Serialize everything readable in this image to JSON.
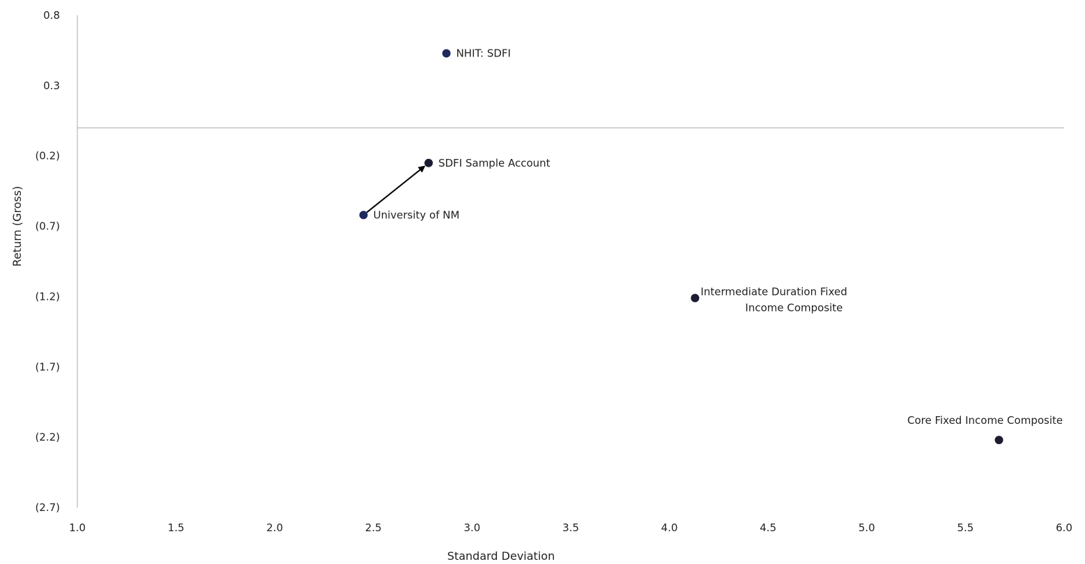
{
  "chart_data": {
    "type": "scatter",
    "title": "",
    "xlabel": "Standard Deviation",
    "ylabel": "Return (Gross)",
    "xlim": [
      1.0,
      6.0
    ],
    "ylim": [
      -2.7,
      0.8
    ],
    "x_ticks": [
      {
        "value": 1.0,
        "label": "1.0"
      },
      {
        "value": 1.5,
        "label": "1.5"
      },
      {
        "value": 2.0,
        "label": "2.0"
      },
      {
        "value": 2.5,
        "label": "2.5"
      },
      {
        "value": 3.0,
        "label": "3.0"
      },
      {
        "value": 3.5,
        "label": "3.5"
      },
      {
        "value": 4.0,
        "label": "4.0"
      },
      {
        "value": 4.5,
        "label": "4.5"
      },
      {
        "value": 5.0,
        "label": "5.0"
      },
      {
        "value": 5.5,
        "label": "5.5"
      },
      {
        "value": 6.0,
        "label": "6.0"
      }
    ],
    "y_ticks": [
      {
        "value": 0.8,
        "label": "0.8"
      },
      {
        "value": 0.3,
        "label": "0.3"
      },
      {
        "value": -0.2,
        "label": "(0.2)"
      },
      {
        "value": -0.7,
        "label": "(0.7)"
      },
      {
        "value": -1.2,
        "label": "(1.2)"
      },
      {
        "value": -1.7,
        "label": "(1.7)"
      },
      {
        "value": -2.2,
        "label": "(2.2)"
      },
      {
        "value": -2.7,
        "label": "(2.7)"
      }
    ],
    "zero_line": 0,
    "grid": false,
    "colors": {
      "point_primary": "#1f2a5c",
      "point_dark": "#1c1c33",
      "axis": "#aaaaaa",
      "arrow": "#000000"
    },
    "points": [
      {
        "name": "NHIT: SDFI",
        "label_lines": [
          "NHIT: SDFI"
        ],
        "x": 2.87,
        "y": 0.53,
        "label_pos": "right",
        "color": "#1f2a5c"
      },
      {
        "name": "SDFI Sample Account",
        "label_lines": [
          "SDFI Sample Account"
        ],
        "x": 2.78,
        "y": -0.25,
        "label_pos": "right",
        "color": "#1c1c33"
      },
      {
        "name": "University of NM",
        "label_lines": [
          "University of NM"
        ],
        "x": 2.45,
        "y": -0.62,
        "label_pos": "right",
        "color": "#1f2a5c"
      },
      {
        "name": "Intermediate Duration Fixed Income Composite",
        "label_lines": [
          "Intermediate Duration Fixed",
          "Income Composite"
        ],
        "x": 4.13,
        "y": -1.21,
        "label_pos": "right-top",
        "color": "#1c1c33"
      },
      {
        "name": "Core Fixed Income Composite",
        "label_lines": [
          "Core Fixed Income Composite"
        ],
        "x": 5.67,
        "y": -2.22,
        "label_pos": "above",
        "color": "#1c1c33"
      }
    ],
    "arrows": [
      {
        "from": {
          "x": 2.45,
          "y": -0.62
        },
        "to": {
          "x": 2.78,
          "y": -0.25
        }
      }
    ]
  }
}
